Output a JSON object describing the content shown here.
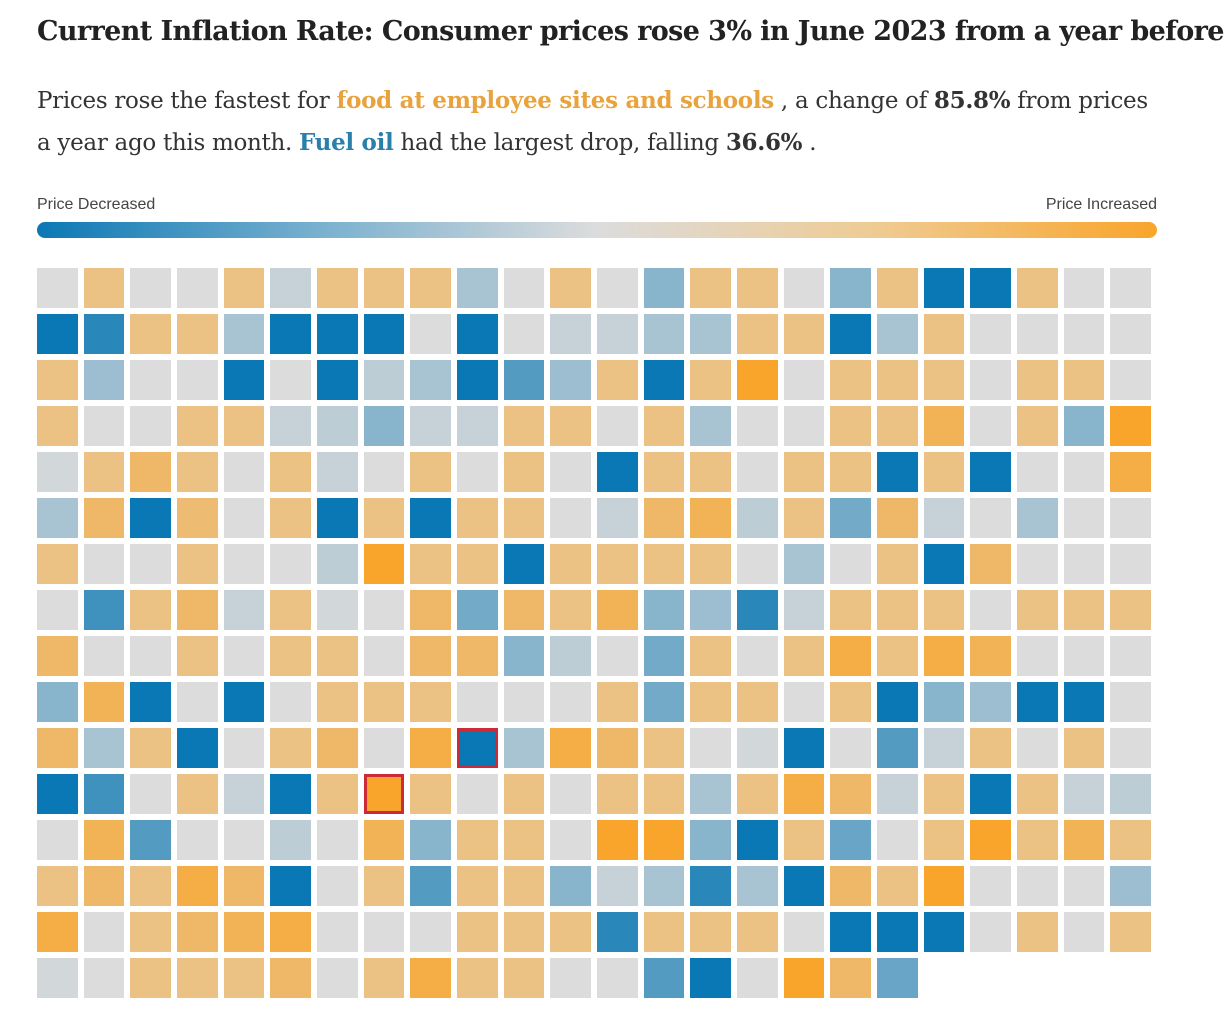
{
  "title": "Current Inflation Rate: Consumer prices rose 3% in June 2023 from a year before",
  "subtitle": {
    "part1": "Prices rose the fastest for ",
    "top_item": "food at employee sites and schools",
    "part2": " , a change of ",
    "top_value": "85.8%",
    "part3": " from prices a year ago this month. ",
    "bottom_item": "Fuel oil",
    "part4": " had the largest drop, falling ",
    "bottom_value": "36.6%",
    "part5": " ."
  },
  "legend": {
    "left_label": "Price Decreased",
    "right_label": "Price Increased"
  },
  "colors": {
    "decrease": "#0a78b4",
    "neutral": "#dcdcdc",
    "increase": "#f9a52b",
    "highlight_border": "#cc2a36"
  },
  "chart_data": {
    "type": "heatmap",
    "columns": 24,
    "rows": 16,
    "value_scale": [
      -2,
      2
    ],
    "legend_position": "top",
    "cell_levels": [
      [
        0,
        1,
        0,
        0,
        1,
        -0.2,
        1,
        1,
        1,
        -0.5,
        0,
        1,
        0,
        -0.8,
        1,
        1,
        0,
        -0.8,
        1,
        -2,
        -2,
        1,
        0,
        0
      ],
      [
        -2,
        -1.7,
        1,
        1,
        -0.5,
        -2,
        -2,
        -2,
        0,
        -2,
        0,
        -0.2,
        -0.2,
        -0.5,
        -0.5,
        1,
        1,
        -2,
        -0.5,
        1,
        0,
        0,
        0,
        0
      ],
      [
        1,
        -0.6,
        0,
        0,
        -2,
        0,
        -2,
        -0.3,
        -0.5,
        -2,
        -1.3,
        -0.6,
        1,
        -2,
        1,
        2,
        0,
        1,
        1,
        1,
        0,
        1,
        1,
        0
      ],
      [
        1,
        0,
        0,
        1,
        1,
        -0.2,
        -0.3,
        -0.8,
        -0.2,
        -0.2,
        1,
        1,
        0,
        1,
        -0.5,
        0,
        0,
        1,
        1,
        1.5,
        0,
        1,
        -0.8,
        2
      ],
      [
        -0.1,
        1,
        1.3,
        1,
        0,
        1,
        -0.2,
        0,
        1,
        0,
        1,
        0,
        -2,
        1,
        1,
        0,
        1,
        1,
        -2,
        1,
        -2,
        0,
        0,
        1.7
      ],
      [
        -0.5,
        1.3,
        -2,
        1.2,
        0,
        1,
        -2,
        1,
        -2,
        1,
        1,
        0,
        -0.2,
        1.3,
        1.5,
        -0.3,
        1,
        -1,
        1.3,
        -0.2,
        0,
        -0.5,
        0,
        0
      ],
      [
        1,
        0,
        0,
        1,
        0,
        0,
        -0.3,
        2,
        1,
        1,
        -2,
        1,
        1,
        1,
        1,
        0,
        -0.5,
        0,
        1,
        -2,
        1.3,
        0,
        0,
        0
      ],
      [
        0,
        -1.5,
        1,
        1.3,
        -0.2,
        1,
        -0.1,
        0,
        1.3,
        -1,
        1.3,
        1,
        1.5,
        -0.8,
        -0.6,
        -1.7,
        -0.2,
        1,
        1,
        1,
        0,
        1,
        1,
        1
      ],
      [
        1.3,
        0,
        0,
        1,
        0,
        1,
        1,
        0,
        1.3,
        1.3,
        -0.8,
        -0.3,
        0,
        -1,
        1,
        0,
        1,
        1.7,
        1,
        1.7,
        1.5,
        0,
        0,
        0
      ],
      [
        -0.8,
        1.5,
        -2,
        0,
        -2,
        0,
        1,
        1,
        1,
        0,
        0,
        0,
        1,
        -1,
        1,
        1,
        0,
        1,
        -2,
        -0.8,
        -0.6,
        -2,
        -2,
        0
      ],
      [
        1.3,
        -0.5,
        1,
        -2,
        0,
        1,
        1.3,
        0,
        1.7,
        -2,
        -0.5,
        1.7,
        1.3,
        1,
        0,
        -0.1,
        -2,
        0,
        -1.3,
        -0.2,
        1,
        0,
        1,
        0
      ],
      [
        -2,
        -1.5,
        0,
        1,
        -0.2,
        -2,
        1,
        2,
        1,
        0,
        1,
        0,
        1,
        1,
        -0.5,
        1,
        1.7,
        1.3,
        -0.2,
        1,
        -2,
        1,
        -0.2,
        -0.3
      ],
      [
        0,
        1.5,
        -1.3,
        0,
        0,
        -0.3,
        0,
        1.5,
        -0.8,
        1,
        1,
        0,
        2,
        2,
        -0.8,
        -2,
        1,
        -1.1,
        0,
        1,
        2,
        1,
        1.5,
        1
      ],
      [
        1,
        1.3,
        1,
        1.7,
        1.3,
        -2,
        0,
        1,
        -1.3,
        1,
        1,
        -0.8,
        -0.2,
        -0.5,
        -1.7,
        -0.5,
        -2,
        1.3,
        1,
        2,
        0,
        0,
        0,
        -0.6
      ],
      [
        1.7,
        0,
        1,
        1.3,
        1.5,
        1.7,
        0,
        0,
        0,
        1,
        1,
        1,
        -1.7,
        1,
        1,
        1,
        0,
        -2,
        -2,
        -2,
        0,
        1,
        0,
        1
      ],
      [
        -0.1,
        0,
        1,
        1,
        1,
        1.3,
        0,
        1,
        1.7,
        1,
        1,
        0,
        0,
        -1.3,
        -2,
        0,
        2,
        1.3,
        -1.1
      ]
    ],
    "highlighted_cells": [
      {
        "row": 10,
        "col": 9,
        "label": "Fuel oil",
        "change_pct": -36.6
      },
      {
        "row": 11,
        "col": 7,
        "label": "food at employee sites and schools",
        "change_pct": 85.8
      }
    ]
  }
}
